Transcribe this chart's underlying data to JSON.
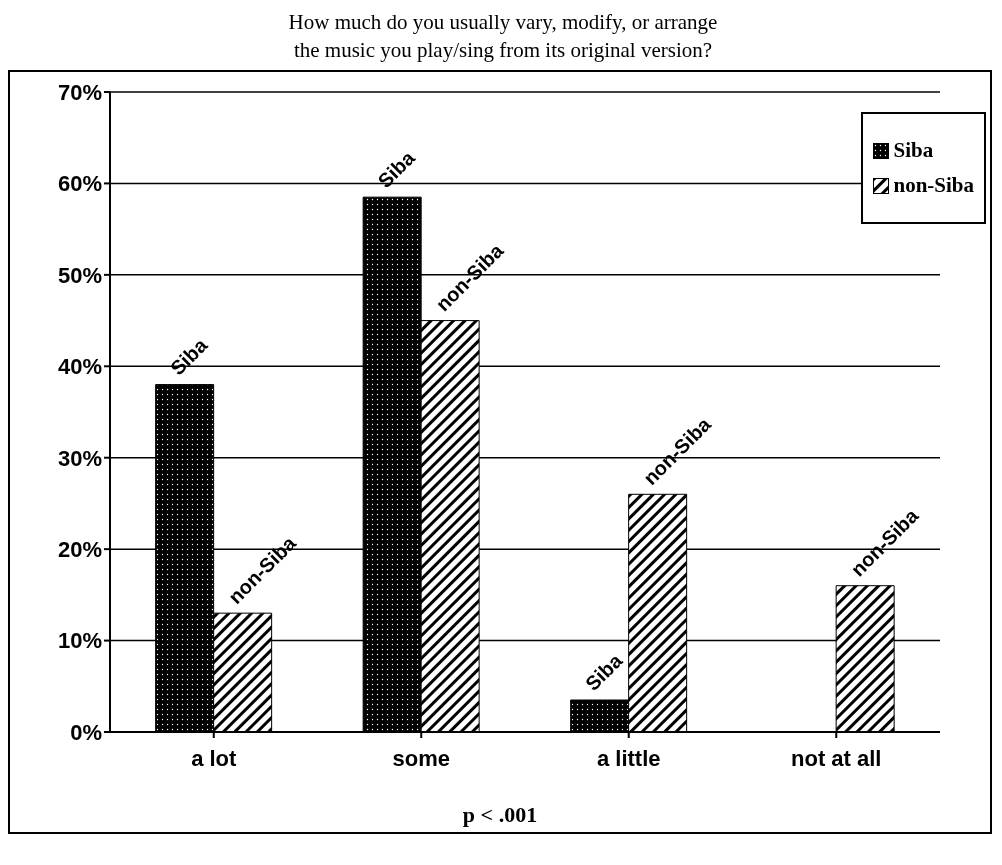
{
  "chart_data": {
    "type": "bar",
    "title": "How much do you usually vary, modify, or arrange\nthe music you play/sing from its original version?",
    "categories": [
      "a lot",
      "some",
      "a little",
      "not at all"
    ],
    "series": [
      {
        "name": "Siba",
        "color": "#000000",
        "values": [
          38,
          58.5,
          3.5,
          0
        ]
      },
      {
        "name": "non-Siba",
        "color": "#000000",
        "values": [
          13,
          45,
          26,
          16
        ]
      }
    ],
    "ylim": [
      0,
      70
    ],
    "yticks": [
      {
        "value": 0,
        "label": "0%"
      },
      {
        "value": 10,
        "label": "10%"
      },
      {
        "value": 20,
        "label": "20%"
      },
      {
        "value": 30,
        "label": "30%"
      },
      {
        "value": 40,
        "label": "40%"
      },
      {
        "value": 50,
        "label": "50%"
      },
      {
        "value": 60,
        "label": "60%"
      },
      {
        "value": 70,
        "label": "70%"
      }
    ],
    "grid": "y",
    "legend": "top right",
    "annotations": [
      "p <  .001"
    ]
  }
}
